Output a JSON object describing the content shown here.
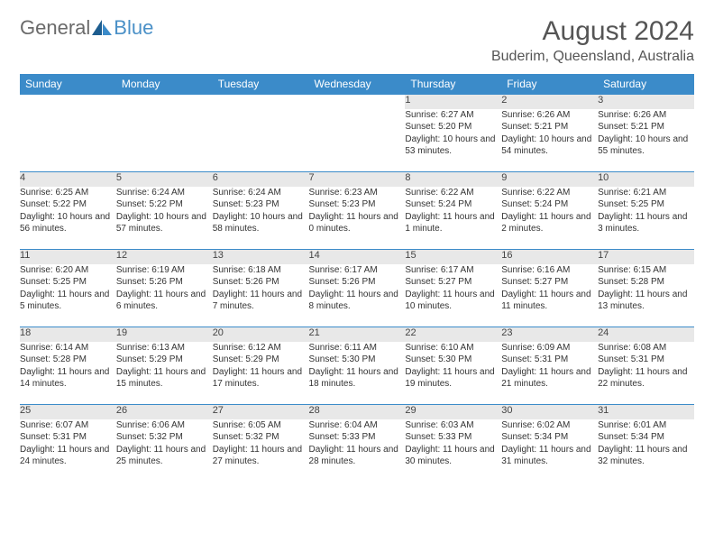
{
  "logo": {
    "text1": "General",
    "text2": "Blue"
  },
  "title": "August 2024",
  "location": "Buderim, Queensland, Australia",
  "colors": {
    "header_bg": "#3b8bc9",
    "header_text": "#ffffff",
    "daynum_bg": "#e8e8e8",
    "border": "#3b8bc9",
    "title_color": "#555555",
    "body_text": "#333333",
    "logo_gray": "#6a6a6a",
    "logo_blue": "#4a90c7"
  },
  "weekdays": [
    "Sunday",
    "Monday",
    "Tuesday",
    "Wednesday",
    "Thursday",
    "Friday",
    "Saturday"
  ],
  "weeks": [
    [
      null,
      null,
      null,
      null,
      {
        "day": "1",
        "sunrise": "Sunrise: 6:27 AM",
        "sunset": "Sunset: 5:20 PM",
        "daylight": "Daylight: 10 hours and 53 minutes."
      },
      {
        "day": "2",
        "sunrise": "Sunrise: 6:26 AM",
        "sunset": "Sunset: 5:21 PM",
        "daylight": "Daylight: 10 hours and 54 minutes."
      },
      {
        "day": "3",
        "sunrise": "Sunrise: 6:26 AM",
        "sunset": "Sunset: 5:21 PM",
        "daylight": "Daylight: 10 hours and 55 minutes."
      }
    ],
    [
      {
        "day": "4",
        "sunrise": "Sunrise: 6:25 AM",
        "sunset": "Sunset: 5:22 PM",
        "daylight": "Daylight: 10 hours and 56 minutes."
      },
      {
        "day": "5",
        "sunrise": "Sunrise: 6:24 AM",
        "sunset": "Sunset: 5:22 PM",
        "daylight": "Daylight: 10 hours and 57 minutes."
      },
      {
        "day": "6",
        "sunrise": "Sunrise: 6:24 AM",
        "sunset": "Sunset: 5:23 PM",
        "daylight": "Daylight: 10 hours and 58 minutes."
      },
      {
        "day": "7",
        "sunrise": "Sunrise: 6:23 AM",
        "sunset": "Sunset: 5:23 PM",
        "daylight": "Daylight: 11 hours and 0 minutes."
      },
      {
        "day": "8",
        "sunrise": "Sunrise: 6:22 AM",
        "sunset": "Sunset: 5:24 PM",
        "daylight": "Daylight: 11 hours and 1 minute."
      },
      {
        "day": "9",
        "sunrise": "Sunrise: 6:22 AM",
        "sunset": "Sunset: 5:24 PM",
        "daylight": "Daylight: 11 hours and 2 minutes."
      },
      {
        "day": "10",
        "sunrise": "Sunrise: 6:21 AM",
        "sunset": "Sunset: 5:25 PM",
        "daylight": "Daylight: 11 hours and 3 minutes."
      }
    ],
    [
      {
        "day": "11",
        "sunrise": "Sunrise: 6:20 AM",
        "sunset": "Sunset: 5:25 PM",
        "daylight": "Daylight: 11 hours and 5 minutes."
      },
      {
        "day": "12",
        "sunrise": "Sunrise: 6:19 AM",
        "sunset": "Sunset: 5:26 PM",
        "daylight": "Daylight: 11 hours and 6 minutes."
      },
      {
        "day": "13",
        "sunrise": "Sunrise: 6:18 AM",
        "sunset": "Sunset: 5:26 PM",
        "daylight": "Daylight: 11 hours and 7 minutes."
      },
      {
        "day": "14",
        "sunrise": "Sunrise: 6:17 AM",
        "sunset": "Sunset: 5:26 PM",
        "daylight": "Daylight: 11 hours and 8 minutes."
      },
      {
        "day": "15",
        "sunrise": "Sunrise: 6:17 AM",
        "sunset": "Sunset: 5:27 PM",
        "daylight": "Daylight: 11 hours and 10 minutes."
      },
      {
        "day": "16",
        "sunrise": "Sunrise: 6:16 AM",
        "sunset": "Sunset: 5:27 PM",
        "daylight": "Daylight: 11 hours and 11 minutes."
      },
      {
        "day": "17",
        "sunrise": "Sunrise: 6:15 AM",
        "sunset": "Sunset: 5:28 PM",
        "daylight": "Daylight: 11 hours and 13 minutes."
      }
    ],
    [
      {
        "day": "18",
        "sunrise": "Sunrise: 6:14 AM",
        "sunset": "Sunset: 5:28 PM",
        "daylight": "Daylight: 11 hours and 14 minutes."
      },
      {
        "day": "19",
        "sunrise": "Sunrise: 6:13 AM",
        "sunset": "Sunset: 5:29 PM",
        "daylight": "Daylight: 11 hours and 15 minutes."
      },
      {
        "day": "20",
        "sunrise": "Sunrise: 6:12 AM",
        "sunset": "Sunset: 5:29 PM",
        "daylight": "Daylight: 11 hours and 17 minutes."
      },
      {
        "day": "21",
        "sunrise": "Sunrise: 6:11 AM",
        "sunset": "Sunset: 5:30 PM",
        "daylight": "Daylight: 11 hours and 18 minutes."
      },
      {
        "day": "22",
        "sunrise": "Sunrise: 6:10 AM",
        "sunset": "Sunset: 5:30 PM",
        "daylight": "Daylight: 11 hours and 19 minutes."
      },
      {
        "day": "23",
        "sunrise": "Sunrise: 6:09 AM",
        "sunset": "Sunset: 5:31 PM",
        "daylight": "Daylight: 11 hours and 21 minutes."
      },
      {
        "day": "24",
        "sunrise": "Sunrise: 6:08 AM",
        "sunset": "Sunset: 5:31 PM",
        "daylight": "Daylight: 11 hours and 22 minutes."
      }
    ],
    [
      {
        "day": "25",
        "sunrise": "Sunrise: 6:07 AM",
        "sunset": "Sunset: 5:31 PM",
        "daylight": "Daylight: 11 hours and 24 minutes."
      },
      {
        "day": "26",
        "sunrise": "Sunrise: 6:06 AM",
        "sunset": "Sunset: 5:32 PM",
        "daylight": "Daylight: 11 hours and 25 minutes."
      },
      {
        "day": "27",
        "sunrise": "Sunrise: 6:05 AM",
        "sunset": "Sunset: 5:32 PM",
        "daylight": "Daylight: 11 hours and 27 minutes."
      },
      {
        "day": "28",
        "sunrise": "Sunrise: 6:04 AM",
        "sunset": "Sunset: 5:33 PM",
        "daylight": "Daylight: 11 hours and 28 minutes."
      },
      {
        "day": "29",
        "sunrise": "Sunrise: 6:03 AM",
        "sunset": "Sunset: 5:33 PM",
        "daylight": "Daylight: 11 hours and 30 minutes."
      },
      {
        "day": "30",
        "sunrise": "Sunrise: 6:02 AM",
        "sunset": "Sunset: 5:34 PM",
        "daylight": "Daylight: 11 hours and 31 minutes."
      },
      {
        "day": "31",
        "sunrise": "Sunrise: 6:01 AM",
        "sunset": "Sunset: 5:34 PM",
        "daylight": "Daylight: 11 hours and 32 minutes."
      }
    ]
  ]
}
